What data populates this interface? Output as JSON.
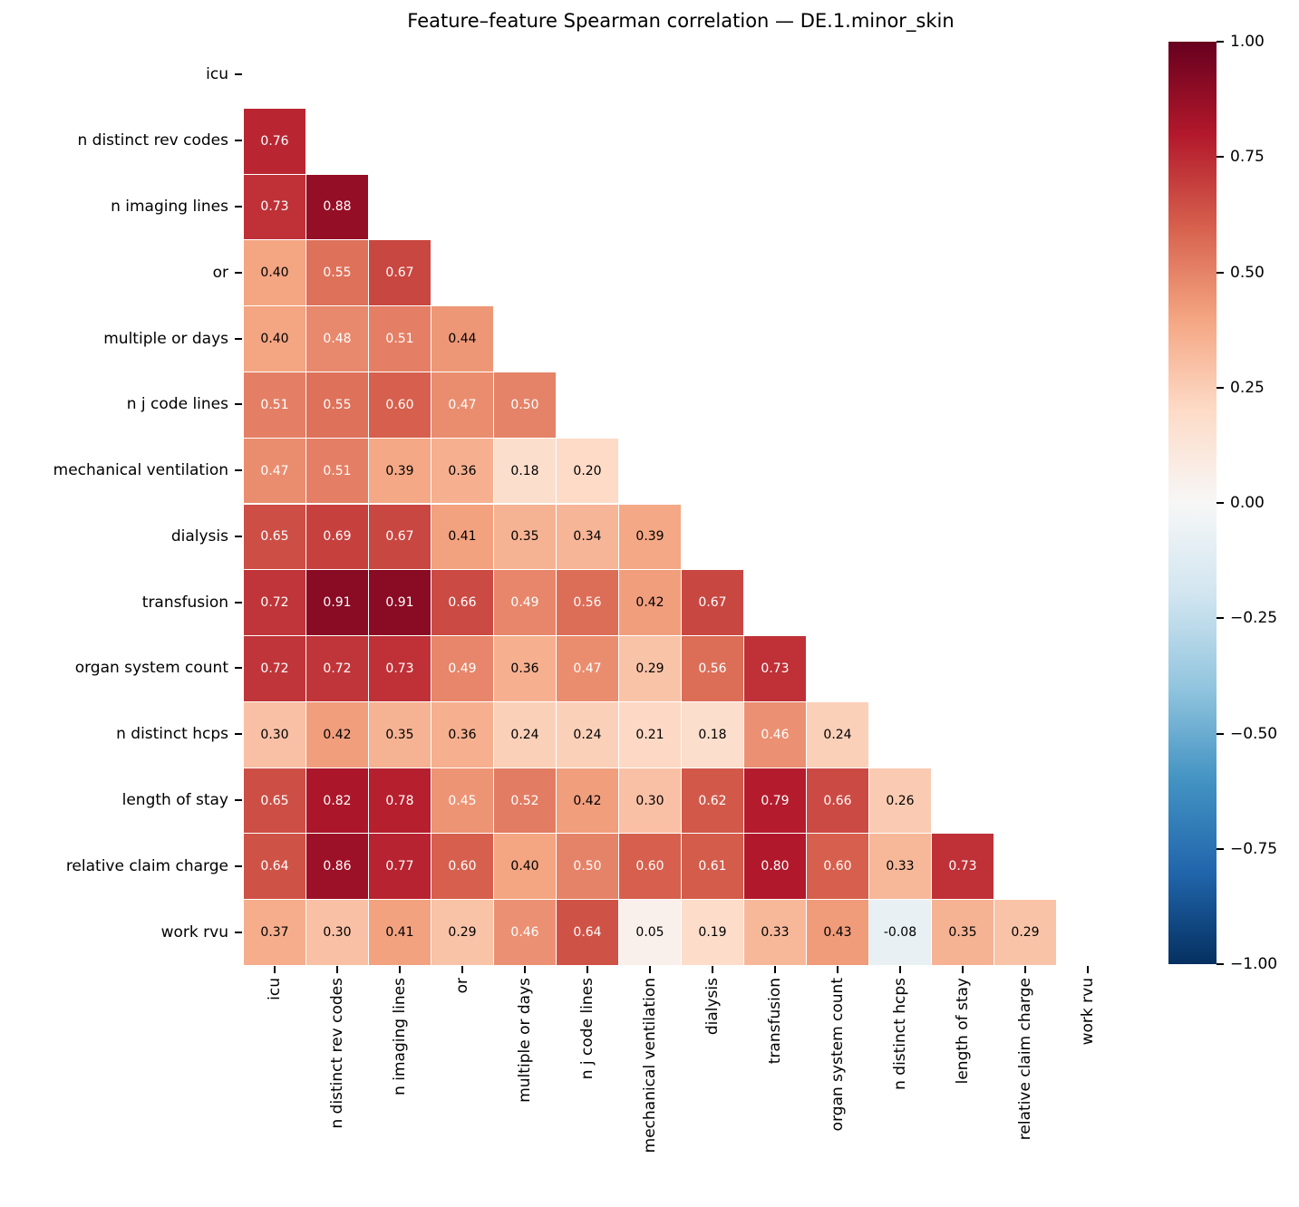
{
  "chart_data": {
    "type": "heatmap",
    "title": "Feature–feature Spearman correlation — DE.1.minor_skin",
    "labels": [
      "icu",
      "n distinct rev codes",
      "n imaging lines",
      "or",
      "multiple or days",
      "n j code lines",
      "mechanical ventilation",
      "dialysis",
      "transfusion",
      "organ system count",
      "n distinct hcps",
      "length of stay",
      "relative claim charge",
      "work rvu"
    ],
    "matrix_lower_triangle": [
      [],
      [
        0.76
      ],
      [
        0.73,
        0.88
      ],
      [
        0.4,
        0.55,
        0.67
      ],
      [
        0.4,
        0.48,
        0.51,
        0.44
      ],
      [
        0.51,
        0.55,
        0.6,
        0.47,
        0.5
      ],
      [
        0.47,
        0.51,
        0.39,
        0.36,
        0.18,
        0.2
      ],
      [
        0.65,
        0.69,
        0.67,
        0.41,
        0.35,
        0.34,
        0.39
      ],
      [
        0.72,
        0.91,
        0.91,
        0.66,
        0.49,
        0.56,
        0.42,
        0.67
      ],
      [
        0.72,
        0.72,
        0.73,
        0.49,
        0.36,
        0.47,
        0.29,
        0.56,
        0.73
      ],
      [
        0.3,
        0.42,
        0.35,
        0.36,
        0.24,
        0.24,
        0.21,
        0.18,
        0.46,
        0.24
      ],
      [
        0.65,
        0.82,
        0.78,
        0.45,
        0.52,
        0.42,
        0.3,
        0.62,
        0.79,
        0.66,
        0.26
      ],
      [
        0.64,
        0.86,
        0.77,
        0.6,
        0.4,
        0.5,
        0.6,
        0.61,
        0.8,
        0.6,
        0.33,
        0.73
      ],
      [
        0.37,
        0.3,
        0.41,
        0.29,
        0.46,
        0.64,
        0.05,
        0.19,
        0.33,
        0.43,
        -0.08,
        0.35,
        0.29
      ]
    ],
    "cell_value_decimals": 2,
    "colormap": "RdBu_r",
    "vmin": -1,
    "vmax": 1,
    "colormap_anchors_low_to_high": [
      "#053061",
      "#2166ac",
      "#4393c3",
      "#92c5de",
      "#d1e5f0",
      "#f7f7f7",
      "#fddbc7",
      "#f4a582",
      "#d6604d",
      "#b2182b",
      "#67001f"
    ],
    "annotation_text_colors": {
      "on_dark": "#ffffff",
      "on_light": "#000000"
    },
    "legend_position": "right",
    "colorbar_ticks": [
      {
        "value": 1.0,
        "label": "1.00"
      },
      {
        "value": 0.75,
        "label": "0.75"
      },
      {
        "value": 0.5,
        "label": "0.50"
      },
      {
        "value": 0.25,
        "label": "0.25"
      },
      {
        "value": 0.0,
        "label": "0.00"
      },
      {
        "value": -0.25,
        "label": "−0.25"
      },
      {
        "value": -0.5,
        "label": "−0.50"
      },
      {
        "value": -0.75,
        "label": "−0.75"
      },
      {
        "value": -1.0,
        "label": "−1.00"
      }
    ]
  }
}
